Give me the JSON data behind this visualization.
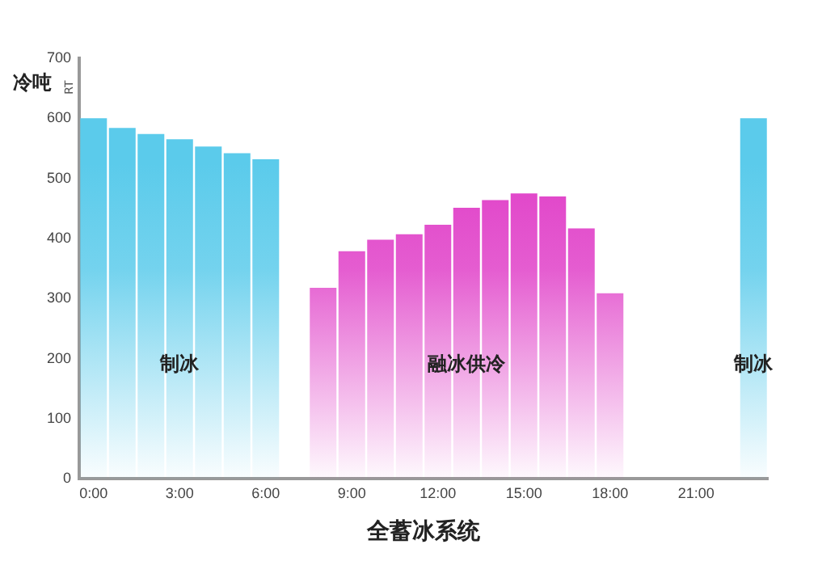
{
  "chart_data": {
    "type": "bar",
    "xlabel": "全蓄冰系统",
    "ylabel": "冷吨",
    "annotations": [
      "RT"
    ],
    "categories": [
      "0:00",
      null,
      null,
      "3:00",
      null,
      null,
      "6:00",
      null,
      null,
      "9:00",
      null,
      null,
      "12:00",
      null,
      null,
      "15:00",
      null,
      null,
      "18:00",
      null,
      null,
      "21:00",
      null,
      null
    ],
    "series": [
      {
        "name": "制冰",
        "color": "#5bcbeb",
        "values": [
          600,
          584,
          574,
          565,
          553,
          542,
          532,
          null,
          null,
          null,
          null,
          null,
          null,
          null,
          null,
          null,
          null,
          null,
          null,
          null,
          null,
          null,
          null,
          600
        ]
      },
      {
        "name": "融冰供冷",
        "color": "#e040c8",
        "values": [
          null,
          null,
          null,
          null,
          null,
          null,
          null,
          null,
          318,
          379,
          398,
          407,
          423,
          451,
          464,
          475,
          470,
          417,
          309,
          null,
          null,
          null,
          null,
          null
        ]
      }
    ],
    "ylim": [
      0,
      700
    ],
    "yticks": [
      0,
      100,
      200,
      300,
      400,
      500,
      600,
      700
    ],
    "grid": false,
    "legend": false
  }
}
